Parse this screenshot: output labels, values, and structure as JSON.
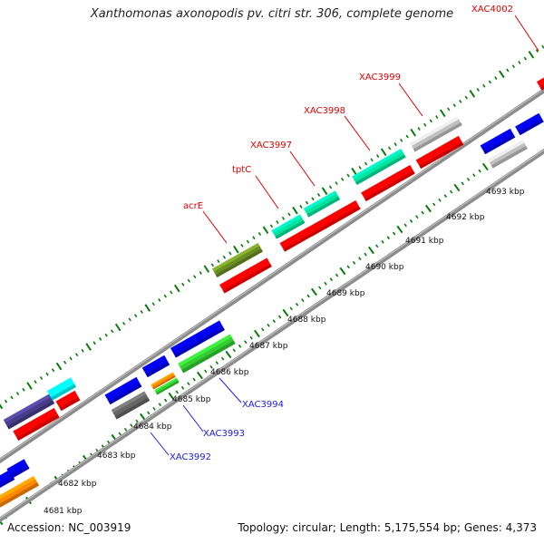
{
  "title": "Xanthomonas axonopodis pv. citri str. 306, complete genome",
  "footer": {
    "accession": "Accession: NC_003919",
    "summary": "Topology: circular; Length: 5,175,554 bp; Genes: 4,373"
  },
  "colors": {
    "backbone": "#8c8c8c",
    "tick": "#0a7a0a",
    "scale_label": "#111111",
    "upper_gene_label": "#dd0000",
    "lower_gene_label": "#1a1ae0",
    "leader": "#1a1ae0"
  },
  "scale_labels": [
    {
      "text": "4681 kbp"
    },
    {
      "text": "4682 kbp"
    },
    {
      "text": "4683 kbp"
    },
    {
      "text": "4684 kbp"
    },
    {
      "text": "4685 kbp"
    },
    {
      "text": "4686 kbp"
    },
    {
      "text": "4687 kbp"
    },
    {
      "text": "4688 kbp"
    },
    {
      "text": "4689 kbp"
    },
    {
      "text": "4690 kbp"
    },
    {
      "text": "4691 kbp"
    },
    {
      "text": "4692 kbp"
    },
    {
      "text": "4693 kbp"
    }
  ],
  "upper_gene_labels": [
    {
      "text": "acrE",
      "color": "#dd0000"
    },
    {
      "text": "tptC",
      "color": "#dd0000"
    },
    {
      "text": "XAC3997",
      "color": "#dd0000"
    },
    {
      "text": "XAC3998",
      "color": "#dd0000"
    },
    {
      "text": "XAC3999",
      "color": "#dd0000"
    },
    {
      "text": "XAC4002",
      "color": "#dd0000"
    }
  ],
  "lower_gene_labels": [
    {
      "text": "XAC3992",
      "color": "#1a1ae0"
    },
    {
      "text": "XAC3993",
      "color": "#1a1ae0"
    },
    {
      "text": "XAC3994",
      "color": "#1a1ae0"
    }
  ],
  "features": [
    {
      "name": "feature-olive",
      "color": "#6b8e23"
    },
    {
      "name": "feature-red",
      "color": "#ff0000"
    },
    {
      "name": "feature-teal",
      "color": "#00e6a0"
    },
    {
      "name": "feature-gray",
      "color": "#c0c0c0"
    },
    {
      "name": "feature-blue",
      "color": "#0000ee"
    },
    {
      "name": "feature-green",
      "color": "#33cc33"
    },
    {
      "name": "feature-orange",
      "color": "#ff8800"
    },
    {
      "name": "feature-darkgray",
      "color": "#666666"
    },
    {
      "name": "feature-slate",
      "color": "#483d8b"
    },
    {
      "name": "feature-cyan",
      "color": "#00ffff"
    }
  ]
}
